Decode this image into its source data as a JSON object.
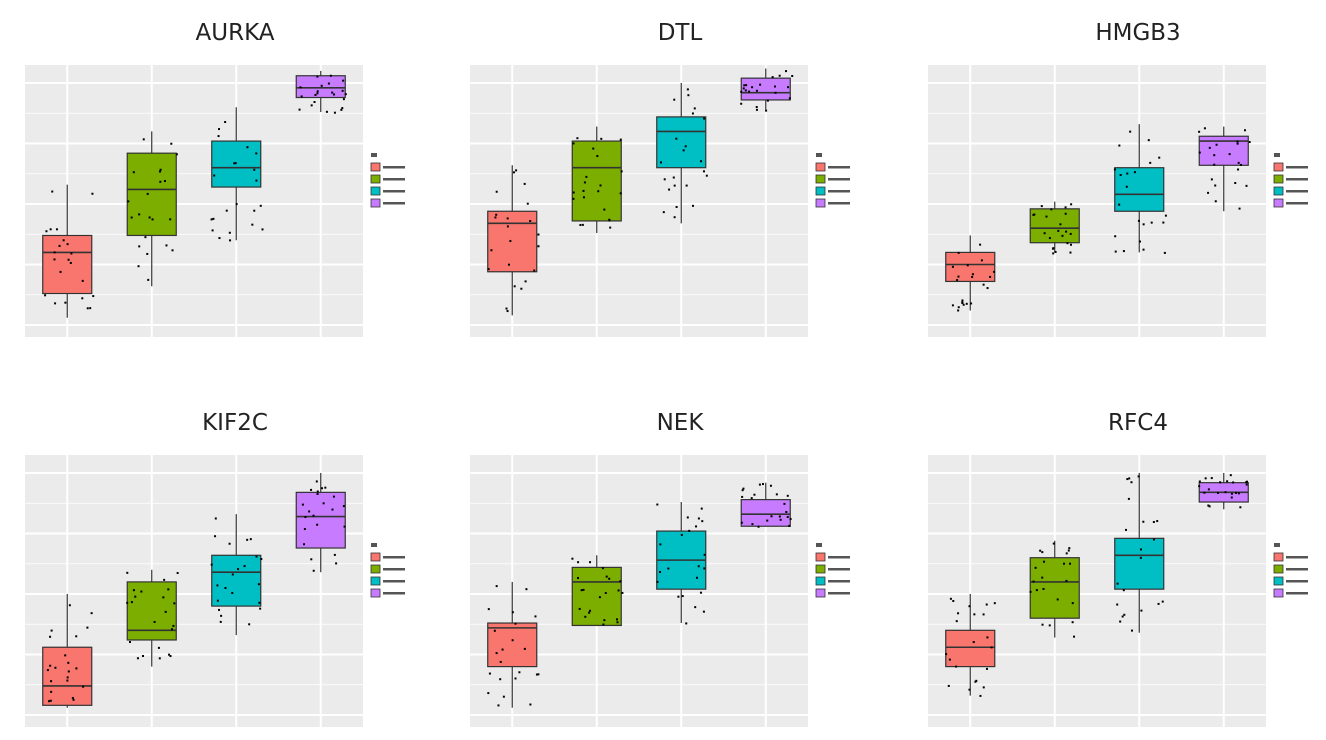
{
  "panels": [
    {
      "title": "AURKA"
    },
    {
      "title": "DTL"
    },
    {
      "title": "HMGB3"
    },
    {
      "title": "KIF2C"
    },
    {
      "title": "NEK"
    },
    {
      "title": "RFC4"
    }
  ],
  "colors": {
    "panel_bg": "#ebebeb",
    "grid": "#ffffff",
    "groups": [
      "#f8766d",
      "#7cae00",
      "#00bfc4",
      "#c77cff"
    ],
    "points": "#000000"
  },
  "chart_data": [
    {
      "type": "box",
      "title": "AURKA",
      "categories": [
        "",
        "",
        "",
        ""
      ],
      "ylim": [
        0,
        1
      ],
      "boxes": [
        {
          "q1": 0.13,
          "median": 0.3,
          "q3": 0.37,
          "lower": 0.03,
          "upper": 0.58
        },
        {
          "q1": 0.37,
          "median": 0.56,
          "q3": 0.71,
          "lower": 0.16,
          "upper": 0.8
        },
        {
          "q1": 0.57,
          "median": 0.65,
          "q3": 0.76,
          "lower": 0.35,
          "upper": 0.9
        },
        {
          "q1": 0.94,
          "median": 0.98,
          "q3": 1.03,
          "lower": 0.88,
          "upper": 1.05
        }
      ]
    },
    {
      "type": "box",
      "title": "DTL",
      "categories": [
        "",
        "",
        "",
        ""
      ],
      "ylim": [
        0,
        1
      ],
      "boxes": [
        {
          "q1": 0.22,
          "median": 0.42,
          "q3": 0.47,
          "lower": 0.04,
          "upper": 0.66
        },
        {
          "q1": 0.43,
          "median": 0.65,
          "q3": 0.76,
          "lower": 0.38,
          "upper": 0.82
        },
        {
          "q1": 0.65,
          "median": 0.8,
          "q3": 0.86,
          "lower": 0.42,
          "upper": 1.0
        },
        {
          "q1": 0.93,
          "median": 0.96,
          "q3": 1.02,
          "lower": 0.89,
          "upper": 1.06
        }
      ]
    },
    {
      "type": "box",
      "title": "HMGB3",
      "categories": [
        "",
        "",
        "",
        ""
      ],
      "ylim": [
        0,
        1
      ],
      "boxes": [
        {
          "q1": 0.18,
          "median": 0.25,
          "q3": 0.3,
          "lower": 0.06,
          "upper": 0.37
        },
        {
          "q1": 0.34,
          "median": 0.4,
          "q3": 0.48,
          "lower": 0.3,
          "upper": 0.51
        },
        {
          "q1": 0.47,
          "median": 0.54,
          "q3": 0.65,
          "lower": 0.3,
          "upper": 0.83
        },
        {
          "q1": 0.66,
          "median": 0.76,
          "q3": 0.78,
          "lower": 0.47,
          "upper": 0.82
        }
      ]
    },
    {
      "type": "box",
      "title": "KIF2C",
      "categories": [
        "",
        "",
        "",
        ""
      ],
      "ylim": [
        0,
        1
      ],
      "boxes": [
        {
          "q1": 0.04,
          "median": 0.12,
          "q3": 0.28,
          "lower": 0.03,
          "upper": 0.5
        },
        {
          "q1": 0.31,
          "median": 0.35,
          "q3": 0.55,
          "lower": 0.2,
          "upper": 0.6
        },
        {
          "q1": 0.45,
          "median": 0.59,
          "q3": 0.66,
          "lower": 0.33,
          "upper": 0.83
        },
        {
          "q1": 0.69,
          "median": 0.82,
          "q3": 0.92,
          "lower": 0.59,
          "upper": 1.0
        }
      ]
    },
    {
      "type": "box",
      "title": "NEK",
      "categories": [
        "",
        "",
        "",
        ""
      ],
      "ylim": [
        0,
        1
      ],
      "boxes": [
        {
          "q1": 0.2,
          "median": 0.36,
          "q3": 0.38,
          "lower": 0.03,
          "upper": 0.55
        },
        {
          "q1": 0.37,
          "median": 0.55,
          "q3": 0.61,
          "lower": 0.37,
          "upper": 0.66
        },
        {
          "q1": 0.52,
          "median": 0.64,
          "q3": 0.76,
          "lower": 0.38,
          "upper": 0.88
        },
        {
          "q1": 0.78,
          "median": 0.83,
          "q3": 0.89,
          "lower": 0.78,
          "upper": 0.96
        }
      ]
    },
    {
      "type": "box",
      "title": "RFC4",
      "categories": [
        "",
        "",
        "",
        ""
      ],
      "ylim": [
        0,
        1
      ],
      "boxes": [
        {
          "q1": 0.2,
          "median": 0.28,
          "q3": 0.35,
          "lower": 0.08,
          "upper": 0.5
        },
        {
          "q1": 0.4,
          "median": 0.55,
          "q3": 0.65,
          "lower": 0.32,
          "upper": 0.72
        },
        {
          "q1": 0.52,
          "median": 0.66,
          "q3": 0.73,
          "lower": 0.34,
          "upper": 1.0
        },
        {
          "q1": 0.88,
          "median": 0.92,
          "q3": 0.96,
          "lower": 0.85,
          "upper": 1.0
        }
      ]
    }
  ]
}
